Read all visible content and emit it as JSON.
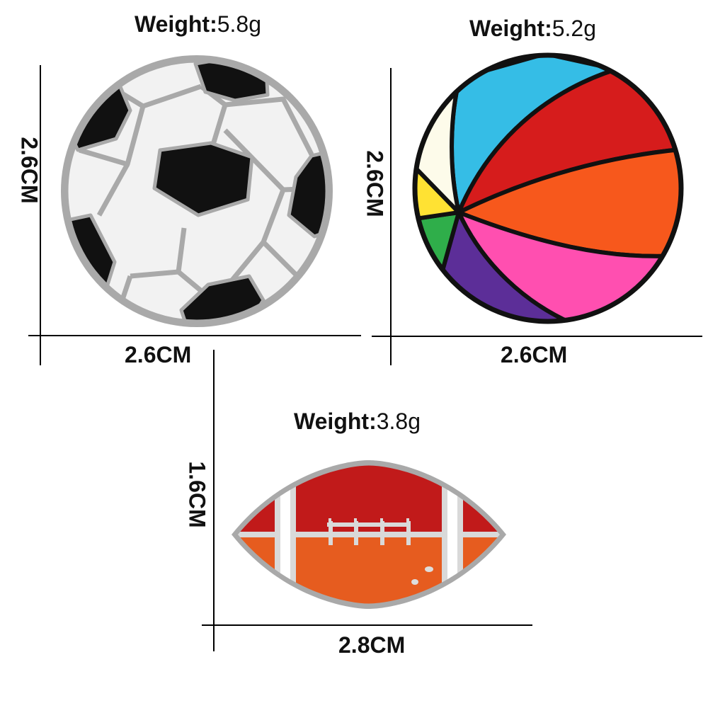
{
  "pins": [
    {
      "name": "soccer-ball-pin",
      "weight_label": "Weight:",
      "weight_value": "5.8g",
      "height": "2.6CM",
      "width": "2.6CM"
    },
    {
      "name": "beach-ball-pin",
      "weight_label": "Weight:",
      "weight_value": "5.2g",
      "height": "2.6CM",
      "width": "2.6CM"
    },
    {
      "name": "football-pin",
      "weight_label": "Weight:",
      "weight_value": "3.8g",
      "height": "1.6CM",
      "width": "2.8CM"
    }
  ],
  "colors": {
    "metal": "#a9a9a9",
    "soccer_white": "#f2f2f2",
    "soccer_black": "#111111",
    "beach_cyan": "#35bde6",
    "beach_red": "#d61c1c",
    "beach_orange": "#f7581c",
    "beach_pink": "#ff4fb0",
    "beach_purple": "#5c2e98",
    "beach_green": "#2fae4a",
    "beach_yellow": "#ffe233",
    "beach_cream": "#fdfbea",
    "football_red": "#c11a1a",
    "football_orange": "#e65c1f"
  }
}
